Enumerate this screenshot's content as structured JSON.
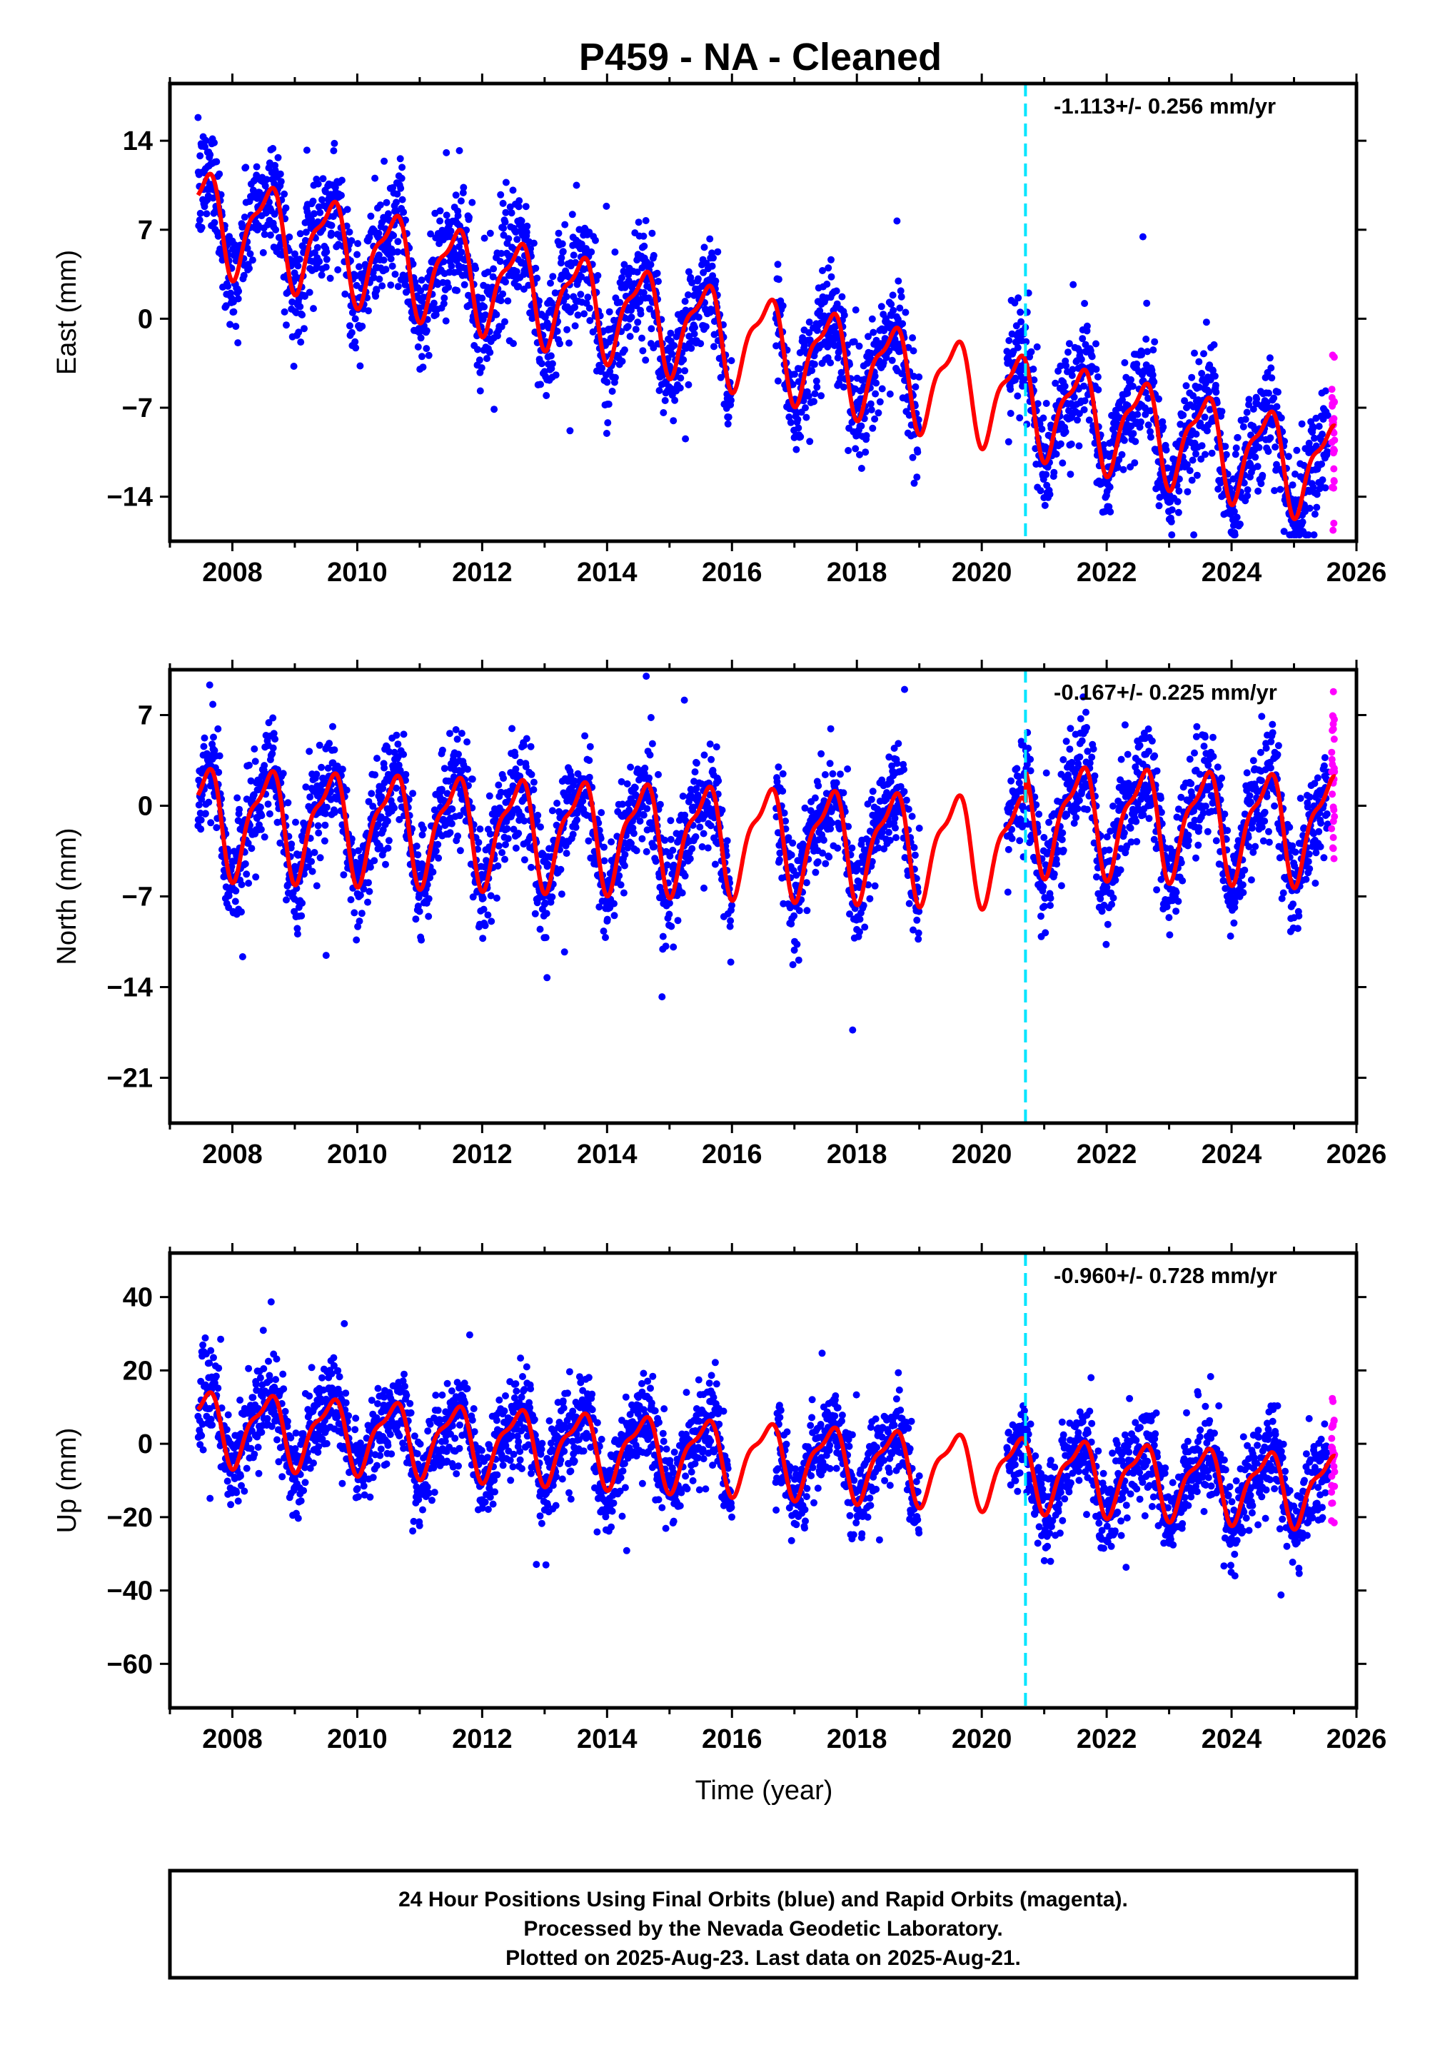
{
  "chart_data": [
    {
      "type": "scatter",
      "title": "P459  - NA - Cleaned",
      "ylabel": "East (mm)",
      "xlim": [
        2007.0,
        2026.0
      ],
      "ylim": [
        -17.5,
        18.5
      ],
      "yticks": [
        14,
        7,
        0,
        -7,
        -14
      ],
      "xticks": [
        2008,
        2010,
        2012,
        2014,
        2016,
        2018,
        2020,
        2022,
        2024,
        2026
      ],
      "rate_label": "-1.113+/- 0.256 mm/yr",
      "event_line_x": 2020.7,
      "model": {
        "base": 8.0,
        "trend": -1.1,
        "amplitude": 3.5,
        "noise": 2.2,
        "offset_after_event": 0.0,
        "ymin_clip": -17,
        "ymax_clip": 18
      },
      "series": [
        {
          "name": "Final Orbits",
          "color": "#0000ff"
        },
        {
          "name": "Rapid Orbits",
          "color": "#ff00ff"
        },
        {
          "name": "Model fit",
          "color": "#ff0000"
        }
      ]
    },
    {
      "type": "scatter",
      "ylabel": "North (mm)",
      "xlim": [
        2007.0,
        2026.0
      ],
      "ylim": [
        -24.5,
        10.5
      ],
      "yticks": [
        7,
        0,
        -7,
        -14,
        -21
      ],
      "xticks": [
        2008,
        2010,
        2012,
        2014,
        2016,
        2018,
        2020,
        2022,
        2024,
        2026
      ],
      "rate_label": "-0.167+/- 0.225 mm/yr",
      "event_line_x": 2020.7,
      "model": {
        "base": -1.0,
        "trend": -0.17,
        "amplitude": 3.8,
        "noise": 2.0,
        "offset_after_event": 2.5,
        "ymin_clip": -24,
        "ymax_clip": 10
      },
      "series": [
        {
          "name": "Final Orbits",
          "color": "#0000ff"
        },
        {
          "name": "Rapid Orbits",
          "color": "#ff00ff"
        },
        {
          "name": "Model fit",
          "color": "#ff0000"
        }
      ]
    },
    {
      "type": "scatter",
      "ylabel": "Up (mm)",
      "xlim": [
        2007.0,
        2026.0
      ],
      "ylim": [
        -72,
        52
      ],
      "yticks": [
        40,
        20,
        0,
        -20,
        -40,
        -60
      ],
      "xticks": [
        2008,
        2010,
        2012,
        2014,
        2016,
        2018,
        2020,
        2022,
        2024,
        2026
      ],
      "xlabel": "Time (year)",
      "rate_label": "-0.960+/- 0.728 mm/yr",
      "event_line_x": 2020.7,
      "model": {
        "base": 5.0,
        "trend": -0.96,
        "amplitude": 9.0,
        "noise": 6.0,
        "offset_after_event": 0.0,
        "ymin_clip": -70,
        "ymax_clip": 50
      },
      "series": [
        {
          "name": "Final Orbits",
          "color": "#0000ff"
        },
        {
          "name": "Rapid Orbits",
          "color": "#ff00ff"
        },
        {
          "name": "Model fit",
          "color": "#ff0000"
        }
      ]
    }
  ],
  "caption": [
    "24 Hour Positions Using Final Orbits (blue) and Rapid Orbits (magenta).",
    "Processed by the Nevada Geodetic Laboratory.",
    "Plotted on 2025-Aug-23. Last data on 2025-Aug-21."
  ],
  "colors": {
    "final": "#0000ff",
    "rapid": "#ff00ff",
    "fit": "#ff0000",
    "event": "#00e5ff"
  }
}
